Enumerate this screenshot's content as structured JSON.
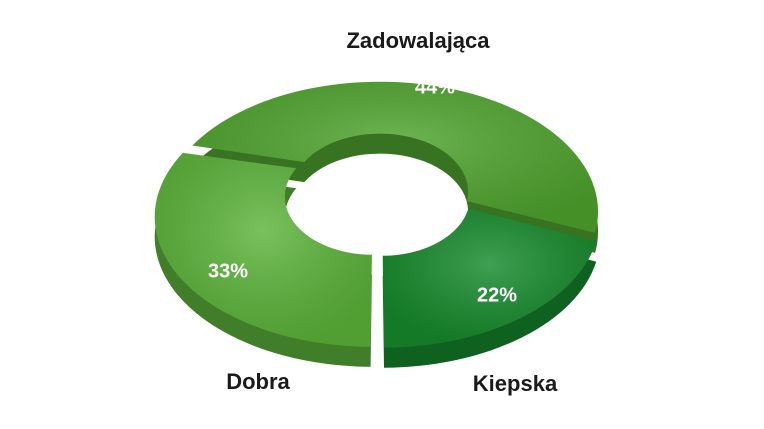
{
  "chart_data": {
    "type": "donut",
    "categories": [
      "Dobra",
      "Zadowalająca",
      "Kiepska"
    ],
    "values": [
      33,
      44,
      22
    ],
    "value_labels": [
      "33%",
      "44%",
      "22%"
    ],
    "colors": [
      "#5cb43a",
      "#4fa42e",
      "#168a2c"
    ]
  }
}
